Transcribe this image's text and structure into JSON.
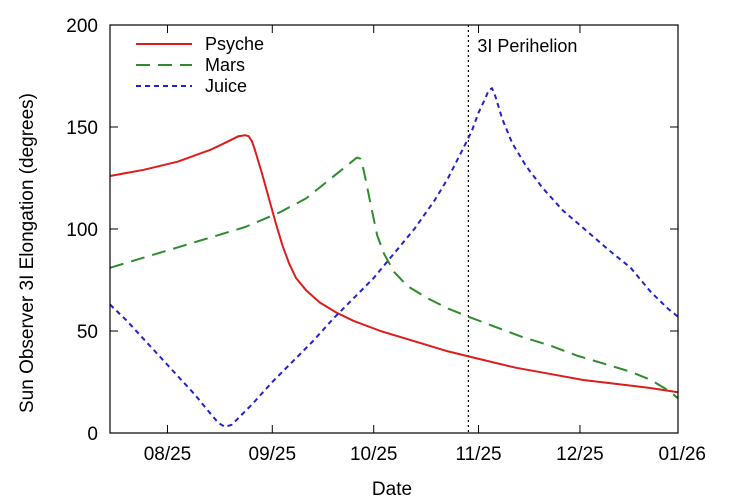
{
  "chart_data": {
    "type": "line",
    "title": "",
    "xlabel": "Date",
    "ylabel": "Sun Observer 3I Elongation (degrees)",
    "xlim": [
      0,
      168
    ],
    "ylim": [
      0,
      200
    ],
    "x_unit": "days since 2025-07-15",
    "x_ticks": [
      {
        "label": "08/25",
        "x": 17
      },
      {
        "label": "09/25",
        "x": 48
      },
      {
        "label": "10/25",
        "x": 78
      },
      {
        "label": "11/25",
        "x": 109
      },
      {
        "label": "12/25",
        "x": 139
      },
      {
        "label": "01/26",
        "x": 170
      }
    ],
    "y_ticks": [
      0,
      50,
      100,
      150,
      200
    ],
    "grid": false,
    "legend_position": "top-left",
    "annotations": [
      {
        "label": "3I Perihelion",
        "x": 106,
        "style": "dotted-vertical-line"
      }
    ],
    "series": [
      {
        "name": "Psyche",
        "color": "#dd1c1c",
        "dash": "solid",
        "points": [
          [
            0,
            126
          ],
          [
            10,
            129
          ],
          [
            20,
            133
          ],
          [
            30,
            139
          ],
          [
            35,
            143
          ],
          [
            38,
            145.5
          ],
          [
            40,
            146
          ],
          [
            41,
            145.5
          ],
          [
            42,
            143
          ],
          [
            43,
            138
          ],
          [
            45,
            127
          ],
          [
            47,
            115
          ],
          [
            49,
            103
          ],
          [
            51,
            92
          ],
          [
            53,
            83
          ],
          [
            55,
            76
          ],
          [
            58,
            70
          ],
          [
            62,
            64
          ],
          [
            67,
            59
          ],
          [
            72,
            55
          ],
          [
            80,
            50
          ],
          [
            90,
            45
          ],
          [
            100,
            40
          ],
          [
            110,
            36
          ],
          [
            120,
            32
          ],
          [
            130,
            29
          ],
          [
            140,
            26
          ],
          [
            150,
            24
          ],
          [
            160,
            22
          ],
          [
            168,
            20
          ]
        ]
      },
      {
        "name": "Mars",
        "color": "#2e8b2e",
        "dash": "long-dash",
        "points": [
          [
            0,
            81
          ],
          [
            10,
            86
          ],
          [
            20,
            91
          ],
          [
            30,
            96
          ],
          [
            40,
            101
          ],
          [
            50,
            108
          ],
          [
            58,
            115
          ],
          [
            64,
            123
          ],
          [
            70,
            131
          ],
          [
            73,
            135
          ],
          [
            74,
            134.5
          ],
          [
            75,
            129
          ],
          [
            76,
            121
          ],
          [
            77,
            113
          ],
          [
            78,
            105
          ],
          [
            79,
            97
          ],
          [
            81,
            88
          ],
          [
            84,
            79
          ],
          [
            88,
            72
          ],
          [
            94,
            66
          ],
          [
            100,
            61
          ],
          [
            106,
            57
          ],
          [
            114,
            52
          ],
          [
            122,
            47
          ],
          [
            130,
            43
          ],
          [
            138,
            38
          ],
          [
            146,
            34
          ],
          [
            154,
            30
          ],
          [
            160,
            26
          ],
          [
            165,
            21
          ],
          [
            168,
            17
          ]
        ]
      },
      {
        "name": "Juice",
        "color": "#2222cc",
        "dash": "short-dash",
        "points": [
          [
            0,
            63
          ],
          [
            5,
            55
          ],
          [
            10,
            46
          ],
          [
            15,
            37
          ],
          [
            20,
            28
          ],
          [
            25,
            19
          ],
          [
            29,
            11
          ],
          [
            32,
            5
          ],
          [
            34,
            3
          ],
          [
            36,
            4
          ],
          [
            42,
            14
          ],
          [
            48,
            25
          ],
          [
            54,
            35
          ],
          [
            60,
            45
          ],
          [
            66,
            56
          ],
          [
            72,
            66
          ],
          [
            78,
            76
          ],
          [
            84,
            88
          ],
          [
            90,
            100
          ],
          [
            96,
            114
          ],
          [
            100,
            125
          ],
          [
            104,
            138
          ],
          [
            107,
            148
          ],
          [
            109,
            157
          ],
          [
            111,
            164
          ],
          [
            112,
            168
          ],
          [
            113,
            169
          ],
          [
            114,
            165
          ],
          [
            116,
            154
          ],
          [
            119,
            142
          ],
          [
            123,
            131
          ],
          [
            128,
            120
          ],
          [
            134,
            109
          ],
          [
            141,
            99
          ],
          [
            148,
            89
          ],
          [
            154,
            81
          ],
          [
            160,
            69
          ],
          [
            165,
            61
          ],
          [
            168,
            57
          ]
        ]
      }
    ]
  }
}
